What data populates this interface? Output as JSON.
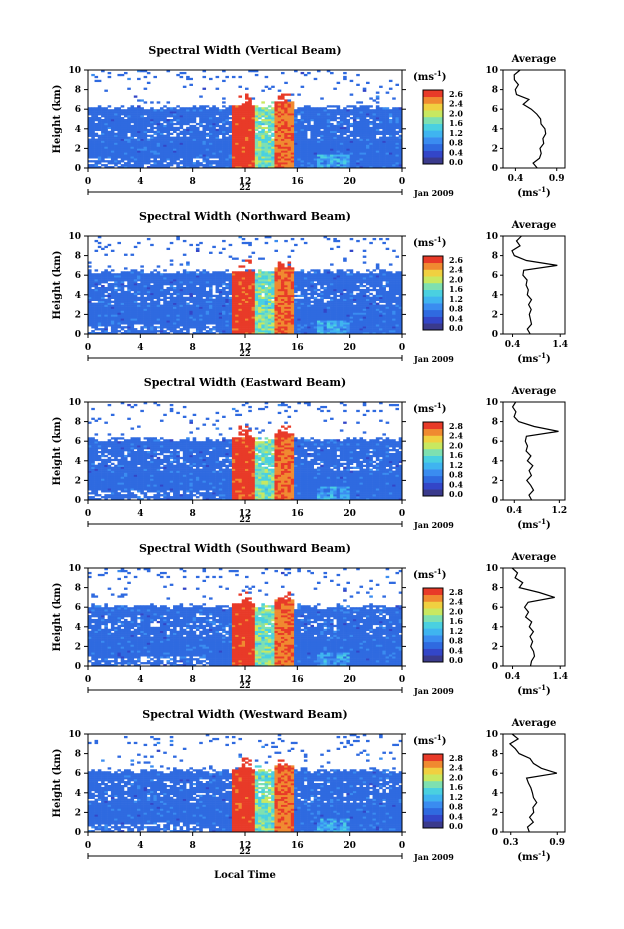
{
  "chart_data": [
    {
      "type": "heatmap",
      "title": "Spectral Width (Vertical Beam)",
      "ylabel": "Height (km)",
      "yticks": [
        "0",
        "2",
        "4",
        "6",
        "8",
        "10"
      ],
      "ylim": [
        0,
        10
      ],
      "xticks": [
        "0",
        "4",
        "8",
        "12",
        "16",
        "20",
        "0"
      ],
      "xlim": [
        0,
        24
      ],
      "day_label": "22",
      "month_label": "Jan 2009",
      "colorbar": {
        "unit": "(ms",
        "unit_exp": "-1",
        "unit_close": ")",
        "ticks": [
          "2.6",
          "2.4",
          "2.0",
          "1.6",
          "1.2",
          "0.8",
          "0.4",
          "0.0"
        ]
      },
      "echo_top_km": 6.2,
      "average": {
        "title": "Average",
        "xticks": [
          "0.4",
          "0.9"
        ],
        "xlim": [
          0.25,
          1.0
        ],
        "xlabel_unit": "(ms",
        "xlabel_exp": "-1",
        "xlabel_close": ")",
        "heights": [
          0,
          0.5,
          1,
          1.5,
          2,
          2.5,
          3,
          3.5,
          4,
          4.5,
          5,
          5.5,
          6,
          6.5,
          7,
          7.5,
          8,
          8.5,
          9,
          9.5,
          10
        ],
        "values": [
          0.65,
          0.62,
          0.68,
          0.72,
          0.7,
          0.74,
          0.73,
          0.77,
          0.75,
          0.71,
          0.7,
          0.66,
          0.58,
          0.5,
          0.55,
          0.42,
          0.4,
          0.45,
          0.38,
          0.4,
          0.45
        ]
      }
    },
    {
      "type": "heatmap",
      "title": "Spectral Width (Northward Beam)",
      "ylabel": "Height (km)",
      "yticks": [
        "0",
        "2",
        "4",
        "6",
        "8",
        "10"
      ],
      "ylim": [
        0,
        10
      ],
      "xticks": [
        "0",
        "4",
        "8",
        "12",
        "16",
        "20",
        "0"
      ],
      "xlim": [
        0,
        24
      ],
      "day_label": "22",
      "month_label": "Jan 2009",
      "colorbar": {
        "unit": "(ms",
        "unit_exp": "-1",
        "unit_close": ")",
        "ticks": [
          "2.6",
          "2.4",
          "2.0",
          "1.6",
          "1.2",
          "0.8",
          "0.4",
          "0.0"
        ]
      },
      "echo_top_km": 6.4,
      "average": {
        "title": "Average",
        "xticks": [
          "0.4",
          "1.4"
        ],
        "xlim": [
          0.2,
          1.5
        ],
        "xlabel_unit": "(ms",
        "xlabel_exp": "-1",
        "xlabel_close": ")",
        "heights": [
          0,
          0.5,
          1,
          1.5,
          2,
          2.5,
          3,
          3.5,
          4,
          4.5,
          5,
          5.5,
          6,
          6.5,
          7,
          7.5,
          8,
          8.5,
          9,
          9.5,
          10
        ],
        "values": [
          0.75,
          0.7,
          0.82,
          0.78,
          0.75,
          0.8,
          0.72,
          0.78,
          0.7,
          0.74,
          0.68,
          0.7,
          0.62,
          0.65,
          1.35,
          0.7,
          0.45,
          0.4,
          0.55,
          0.5,
          0.6
        ]
      }
    },
    {
      "type": "heatmap",
      "title": "Spectral Width (Eastward Beam)",
      "ylabel": "Height (km)",
      "yticks": [
        "0",
        "2",
        "4",
        "6",
        "8",
        "10"
      ],
      "ylim": [
        0,
        10
      ],
      "xticks": [
        "0",
        "4",
        "8",
        "12",
        "16",
        "20",
        "0"
      ],
      "xlim": [
        0,
        24
      ],
      "day_label": "22",
      "month_label": "Jan 2009",
      "colorbar": {
        "unit": "(ms",
        "unit_exp": "-1",
        "unit_close": ")",
        "ticks": [
          "2.8",
          "2.4",
          "2.0",
          "1.6",
          "1.2",
          "0.8",
          "0.4",
          "0.0"
        ]
      },
      "echo_top_km": 6.2,
      "average": {
        "title": "Average",
        "xticks": [
          "0.4",
          "1.2"
        ],
        "xlim": [
          0.2,
          1.3
        ],
        "xlabel_unit": "(ms",
        "xlabel_exp": "-1",
        "xlabel_close": ")",
        "heights": [
          0,
          0.5,
          1,
          1.5,
          2,
          2.5,
          3,
          3.5,
          4,
          4.5,
          5,
          5.5,
          6,
          6.5,
          7,
          7.5,
          8,
          8.5,
          9,
          9.5,
          10
        ],
        "values": [
          0.7,
          0.65,
          0.72,
          0.68,
          0.62,
          0.7,
          0.66,
          0.72,
          0.64,
          0.68,
          0.6,
          0.62,
          0.58,
          0.6,
          1.2,
          0.75,
          0.5,
          0.4,
          0.45,
          0.38,
          0.42
        ]
      }
    },
    {
      "type": "heatmap",
      "title": "Spectral Width (Southward Beam)",
      "ylabel": "Height (km)",
      "yticks": [
        "0",
        "2",
        "4",
        "6",
        "8",
        "10"
      ],
      "ylim": [
        0,
        10
      ],
      "xticks": [
        "0",
        "4",
        "8",
        "12",
        "16",
        "20",
        "0"
      ],
      "xlim": [
        0,
        24
      ],
      "day_label": "22",
      "month_label": "Jan 2009",
      "colorbar": {
        "unit": "(ms",
        "unit_exp": "-1",
        "unit_close": ")",
        "ticks": [
          "2.8",
          "2.4",
          "2.0",
          "1.6",
          "1.2",
          "0.8",
          "0.4",
          "0.0"
        ]
      },
      "echo_top_km": 6.1,
      "average": {
        "title": "Average",
        "xticks": [
          "0.4",
          "1.4"
        ],
        "xlim": [
          0.2,
          1.5
        ],
        "xlabel_unit": "(ms",
        "xlabel_exp": "-1",
        "xlabel_close": ")",
        "heights": [
          0,
          0.5,
          1,
          1.5,
          2,
          2.5,
          3,
          3.5,
          4,
          4.5,
          5,
          5.5,
          6,
          6.5,
          7,
          7.5,
          8,
          8.5,
          9,
          9.5,
          10
        ],
        "values": [
          0.8,
          0.78,
          0.85,
          0.82,
          0.78,
          0.84,
          0.76,
          0.82,
          0.74,
          0.78,
          0.7,
          0.72,
          0.65,
          0.7,
          1.3,
          0.95,
          0.55,
          0.6,
          0.45,
          0.5,
          0.4
        ]
      }
    },
    {
      "type": "heatmap",
      "title": "Spectral Width (Westward Beam)",
      "ylabel": "Height (km)",
      "yticks": [
        "0",
        "2",
        "4",
        "6",
        "8",
        "10"
      ],
      "ylim": [
        0,
        10
      ],
      "xticks": [
        "0",
        "4",
        "8",
        "12",
        "16",
        "20",
        "0"
      ],
      "xlim": [
        0,
        24
      ],
      "day_label": "22",
      "month_label": "Jan 2009",
      "colorbar": {
        "unit": "(ms",
        "unit_exp": "-1",
        "unit_close": ")",
        "ticks": [
          "2.8",
          "2.4",
          "2.0",
          "1.6",
          "1.2",
          "0.8",
          "0.4",
          "0.0"
        ]
      },
      "echo_top_km": 6.3,
      "average": {
        "title": "Average",
        "xticks": [
          "0.3",
          "0.9"
        ],
        "xlim": [
          0.2,
          1.0
        ],
        "xlabel_unit": "(ms",
        "xlabel_exp": "-1",
        "xlabel_close": ")",
        "heights": [
          0,
          0.5,
          1,
          1.5,
          2,
          2.5,
          3,
          3.5,
          4,
          4.5,
          5,
          5.5,
          6,
          6.5,
          7,
          7.5,
          8,
          8.5,
          9,
          9.5,
          10
        ],
        "values": [
          0.55,
          0.52,
          0.58,
          0.55,
          0.6,
          0.58,
          0.62,
          0.6,
          0.57,
          0.55,
          0.52,
          0.5,
          0.88,
          0.7,
          0.6,
          0.55,
          0.4,
          0.35,
          0.3,
          0.38,
          0.32
        ]
      }
    }
  ],
  "xlabel": "Local Time"
}
